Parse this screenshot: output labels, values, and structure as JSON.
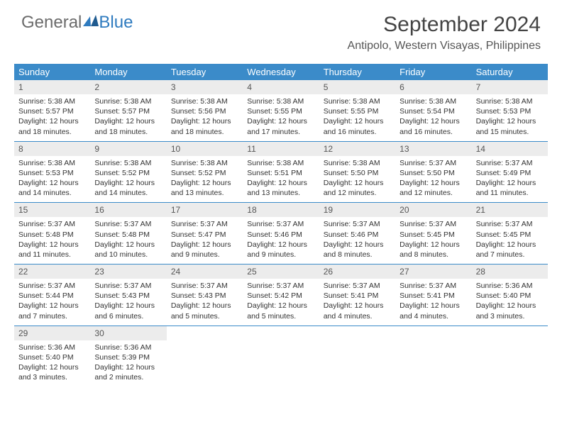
{
  "logo": {
    "text1": "General",
    "text2": "Blue"
  },
  "title": "September 2024",
  "location": "Antipolo, Western Visayas, Philippines",
  "styling": {
    "header_bg": "#3b8bc9",
    "header_text": "#ffffff",
    "daynum_bg": "#ececec",
    "daynum_text": "#555555",
    "body_text": "#333333",
    "border_color": "#3b8bc9",
    "title_color": "#444444",
    "title_fontsize": 30,
    "location_fontsize": 16,
    "weekday_fontsize": 13,
    "daynum_fontsize": 12,
    "body_fontsize": 10.5,
    "columns": 7
  },
  "weekdays": [
    "Sunday",
    "Monday",
    "Tuesday",
    "Wednesday",
    "Thursday",
    "Friday",
    "Saturday"
  ],
  "weeks": [
    [
      {
        "n": "1",
        "sr": "Sunrise: 5:38 AM",
        "ss": "Sunset: 5:57 PM",
        "dl": "Daylight: 12 hours and 18 minutes."
      },
      {
        "n": "2",
        "sr": "Sunrise: 5:38 AM",
        "ss": "Sunset: 5:57 PM",
        "dl": "Daylight: 12 hours and 18 minutes."
      },
      {
        "n": "3",
        "sr": "Sunrise: 5:38 AM",
        "ss": "Sunset: 5:56 PM",
        "dl": "Daylight: 12 hours and 18 minutes."
      },
      {
        "n": "4",
        "sr": "Sunrise: 5:38 AM",
        "ss": "Sunset: 5:55 PM",
        "dl": "Daylight: 12 hours and 17 minutes."
      },
      {
        "n": "5",
        "sr": "Sunrise: 5:38 AM",
        "ss": "Sunset: 5:55 PM",
        "dl": "Daylight: 12 hours and 16 minutes."
      },
      {
        "n": "6",
        "sr": "Sunrise: 5:38 AM",
        "ss": "Sunset: 5:54 PM",
        "dl": "Daylight: 12 hours and 16 minutes."
      },
      {
        "n": "7",
        "sr": "Sunrise: 5:38 AM",
        "ss": "Sunset: 5:53 PM",
        "dl": "Daylight: 12 hours and 15 minutes."
      }
    ],
    [
      {
        "n": "8",
        "sr": "Sunrise: 5:38 AM",
        "ss": "Sunset: 5:53 PM",
        "dl": "Daylight: 12 hours and 14 minutes."
      },
      {
        "n": "9",
        "sr": "Sunrise: 5:38 AM",
        "ss": "Sunset: 5:52 PM",
        "dl": "Daylight: 12 hours and 14 minutes."
      },
      {
        "n": "10",
        "sr": "Sunrise: 5:38 AM",
        "ss": "Sunset: 5:52 PM",
        "dl": "Daylight: 12 hours and 13 minutes."
      },
      {
        "n": "11",
        "sr": "Sunrise: 5:38 AM",
        "ss": "Sunset: 5:51 PM",
        "dl": "Daylight: 12 hours and 13 minutes."
      },
      {
        "n": "12",
        "sr": "Sunrise: 5:38 AM",
        "ss": "Sunset: 5:50 PM",
        "dl": "Daylight: 12 hours and 12 minutes."
      },
      {
        "n": "13",
        "sr": "Sunrise: 5:37 AM",
        "ss": "Sunset: 5:50 PM",
        "dl": "Daylight: 12 hours and 12 minutes."
      },
      {
        "n": "14",
        "sr": "Sunrise: 5:37 AM",
        "ss": "Sunset: 5:49 PM",
        "dl": "Daylight: 12 hours and 11 minutes."
      }
    ],
    [
      {
        "n": "15",
        "sr": "Sunrise: 5:37 AM",
        "ss": "Sunset: 5:48 PM",
        "dl": "Daylight: 12 hours and 11 minutes."
      },
      {
        "n": "16",
        "sr": "Sunrise: 5:37 AM",
        "ss": "Sunset: 5:48 PM",
        "dl": "Daylight: 12 hours and 10 minutes."
      },
      {
        "n": "17",
        "sr": "Sunrise: 5:37 AM",
        "ss": "Sunset: 5:47 PM",
        "dl": "Daylight: 12 hours and 9 minutes."
      },
      {
        "n": "18",
        "sr": "Sunrise: 5:37 AM",
        "ss": "Sunset: 5:46 PM",
        "dl": "Daylight: 12 hours and 9 minutes."
      },
      {
        "n": "19",
        "sr": "Sunrise: 5:37 AM",
        "ss": "Sunset: 5:46 PM",
        "dl": "Daylight: 12 hours and 8 minutes."
      },
      {
        "n": "20",
        "sr": "Sunrise: 5:37 AM",
        "ss": "Sunset: 5:45 PM",
        "dl": "Daylight: 12 hours and 8 minutes."
      },
      {
        "n": "21",
        "sr": "Sunrise: 5:37 AM",
        "ss": "Sunset: 5:45 PM",
        "dl": "Daylight: 12 hours and 7 minutes."
      }
    ],
    [
      {
        "n": "22",
        "sr": "Sunrise: 5:37 AM",
        "ss": "Sunset: 5:44 PM",
        "dl": "Daylight: 12 hours and 7 minutes."
      },
      {
        "n": "23",
        "sr": "Sunrise: 5:37 AM",
        "ss": "Sunset: 5:43 PM",
        "dl": "Daylight: 12 hours and 6 minutes."
      },
      {
        "n": "24",
        "sr": "Sunrise: 5:37 AM",
        "ss": "Sunset: 5:43 PM",
        "dl": "Daylight: 12 hours and 5 minutes."
      },
      {
        "n": "25",
        "sr": "Sunrise: 5:37 AM",
        "ss": "Sunset: 5:42 PM",
        "dl": "Daylight: 12 hours and 5 minutes."
      },
      {
        "n": "26",
        "sr": "Sunrise: 5:37 AM",
        "ss": "Sunset: 5:41 PM",
        "dl": "Daylight: 12 hours and 4 minutes."
      },
      {
        "n": "27",
        "sr": "Sunrise: 5:37 AM",
        "ss": "Sunset: 5:41 PM",
        "dl": "Daylight: 12 hours and 4 minutes."
      },
      {
        "n": "28",
        "sr": "Sunrise: 5:36 AM",
        "ss": "Sunset: 5:40 PM",
        "dl": "Daylight: 12 hours and 3 minutes."
      }
    ],
    [
      {
        "n": "29",
        "sr": "Sunrise: 5:36 AM",
        "ss": "Sunset: 5:40 PM",
        "dl": "Daylight: 12 hours and 3 minutes."
      },
      {
        "n": "30",
        "sr": "Sunrise: 5:36 AM",
        "ss": "Sunset: 5:39 PM",
        "dl": "Daylight: 12 hours and 2 minutes."
      },
      null,
      null,
      null,
      null,
      null
    ]
  ]
}
